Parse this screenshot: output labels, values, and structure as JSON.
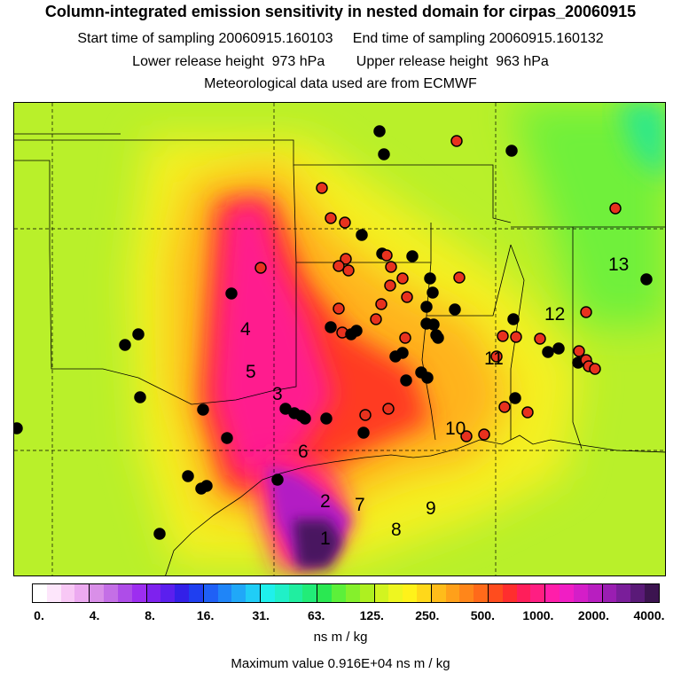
{
  "header": {
    "title": "Column-integrated emission sensitivity in nested domain for cirpas_20060915",
    "sampling_line": "Start time of sampling 20060915.160103     End time of sampling 20060915.160132",
    "release_line": "Lower release height  973 hPa        Upper release height  963 hPa",
    "met_line": "Meteorological data used are from ECMWF"
  },
  "map": {
    "labels": [
      "1",
      "2",
      "3",
      "4",
      "5",
      "6",
      "7",
      "8",
      "9",
      "10",
      "11",
      "12",
      "13"
    ],
    "station_colors": {
      "black": "#000000",
      "red": "#e8321e"
    }
  },
  "colorbar": {
    "colors": [
      "#ffffff",
      "#fde6fb",
      "#f8c8f5",
      "#ecaaf0",
      "#d98fe8",
      "#c46fe6",
      "#ae4de8",
      "#9d2ef0",
      "#7e22ee",
      "#5b1fee",
      "#3320e8",
      "#1f3ff0",
      "#1f60f6",
      "#1f85f8",
      "#20a8f8",
      "#20cdf6",
      "#1ff0ec",
      "#20f0c8",
      "#20eea0",
      "#22ec78",
      "#2ae852",
      "#5cf03a",
      "#85f02c",
      "#aef020",
      "#d2f420",
      "#eef620",
      "#fff21a",
      "#ffd81a",
      "#ffbc1a",
      "#ffa01a",
      "#ff861a",
      "#ff6a1a",
      "#ff4c1e",
      "#ff2e2e",
      "#ff1e5a",
      "#ff1e82",
      "#ff1eaa",
      "#f01ec4",
      "#d41ec8",
      "#b81ec0",
      "#9a1eb2",
      "#7a1e9a",
      "#5a1a78",
      "#3c1450"
    ],
    "tick_labels": [
      "0.",
      "4.",
      "8.",
      "16.",
      "31.",
      "63.",
      "125.",
      "250.",
      "500.",
      "1000.",
      "2000.",
      "4000."
    ],
    "units": "ns m / kg"
  },
  "footer": {
    "max_value": "Maximum value  0.916E+04 ns m / kg"
  }
}
